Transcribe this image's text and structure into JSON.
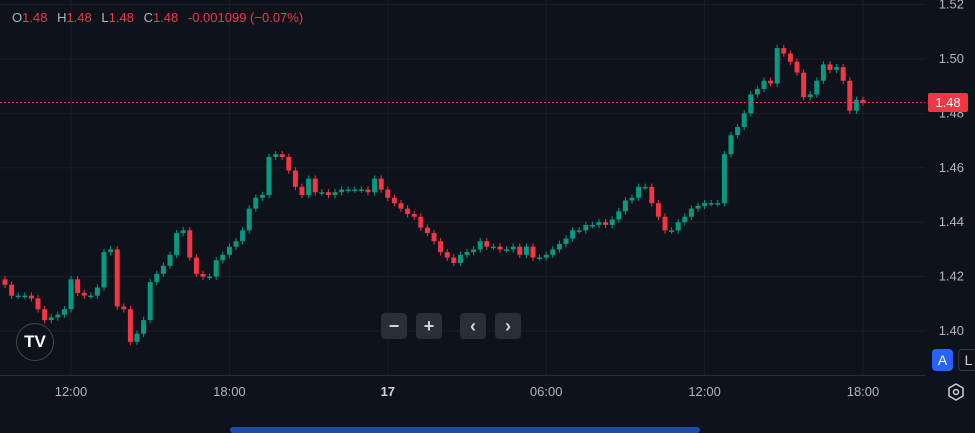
{
  "legend": {
    "o_label": "O",
    "o": "1.48",
    "h_label": "H",
    "h": "1.48",
    "l_label": "L",
    "l": "1.48",
    "c_label": "C",
    "c": "1.48",
    "change": "-0.001099 (−0.07%)"
  },
  "colors": {
    "up": "#089981",
    "down": "#f23645",
    "background": "#0e121b",
    "grid": "#1a1e28"
  },
  "controls": {
    "zoom_out": "−",
    "zoom_in": "+",
    "scroll_left": "‹",
    "scroll_right": "›"
  },
  "scale_buttons": {
    "auto": "A",
    "log": "L"
  },
  "last_price_label": "1.48",
  "logo_text": "TV",
  "chart_data": {
    "type": "candlestick",
    "title": "",
    "xlabel": "",
    "ylabel": "",
    "ylim": [
      1.385,
      1.52
    ],
    "y_ticks": [
      "1.40",
      "1.42",
      "1.44",
      "1.46",
      "1.48",
      "1.50",
      "1.52"
    ],
    "x_ticks": [
      {
        "label": "12:00",
        "index": 10
      },
      {
        "label": "18:00",
        "index": 34
      },
      {
        "label": "17",
        "index": 58
      },
      {
        "label": "06:00",
        "index": 82
      },
      {
        "label": "12:00",
        "index": 106
      },
      {
        "label": "18:00",
        "index": 130
      }
    ],
    "grid": true,
    "last_price": 1.484,
    "first_open": 1.419,
    "closes": [
      1.417,
      1.413,
      1.413,
      1.413,
      1.412,
      1.408,
      1.404,
      1.405,
      1.406,
      1.408,
      1.419,
      1.414,
      1.413,
      1.413,
      1.416,
      1.429,
      1.43,
      1.409,
      1.408,
      1.396,
      1.399,
      1.404,
      1.418,
      1.421,
      1.424,
      1.428,
      1.436,
      1.437,
      1.427,
      1.421,
      1.42,
      1.42,
      1.426,
      1.428,
      1.431,
      1.433,
      1.437,
      1.445,
      1.449,
      1.45,
      1.464,
      1.465,
      1.464,
      1.459,
      1.453,
      1.45,
      1.456,
      1.451,
      1.451,
      1.45,
      1.451,
      1.452,
      1.452,
      1.452,
      1.452,
      1.451,
      1.456,
      1.452,
      1.449,
      1.447,
      1.445,
      1.443,
      1.442,
      1.438,
      1.436,
      1.433,
      1.429,
      1.427,
      1.425,
      1.428,
      1.429,
      1.43,
      1.433,
      1.431,
      1.431,
      1.43,
      1.43,
      1.431,
      1.428,
      1.431,
      1.427,
      1.427,
      1.428,
      1.43,
      1.432,
      1.434,
      1.437,
      1.437,
      1.439,
      1.439,
      1.44,
      1.439,
      1.441,
      1.444,
      1.448,
      1.449,
      1.453,
      1.453,
      1.447,
      1.442,
      1.437,
      1.437,
      1.44,
      1.442,
      1.445,
      1.446,
      1.447,
      1.447,
      1.447,
      1.465,
      1.472,
      1.475,
      1.48,
      1.487,
      1.489,
      1.492,
      1.491,
      1.504,
      1.502,
      1.499,
      1.495,
      1.486,
      1.487,
      1.492,
      1.498,
      1.496,
      1.497,
      1.492,
      1.481,
      1.485,
      1.484
    ]
  }
}
